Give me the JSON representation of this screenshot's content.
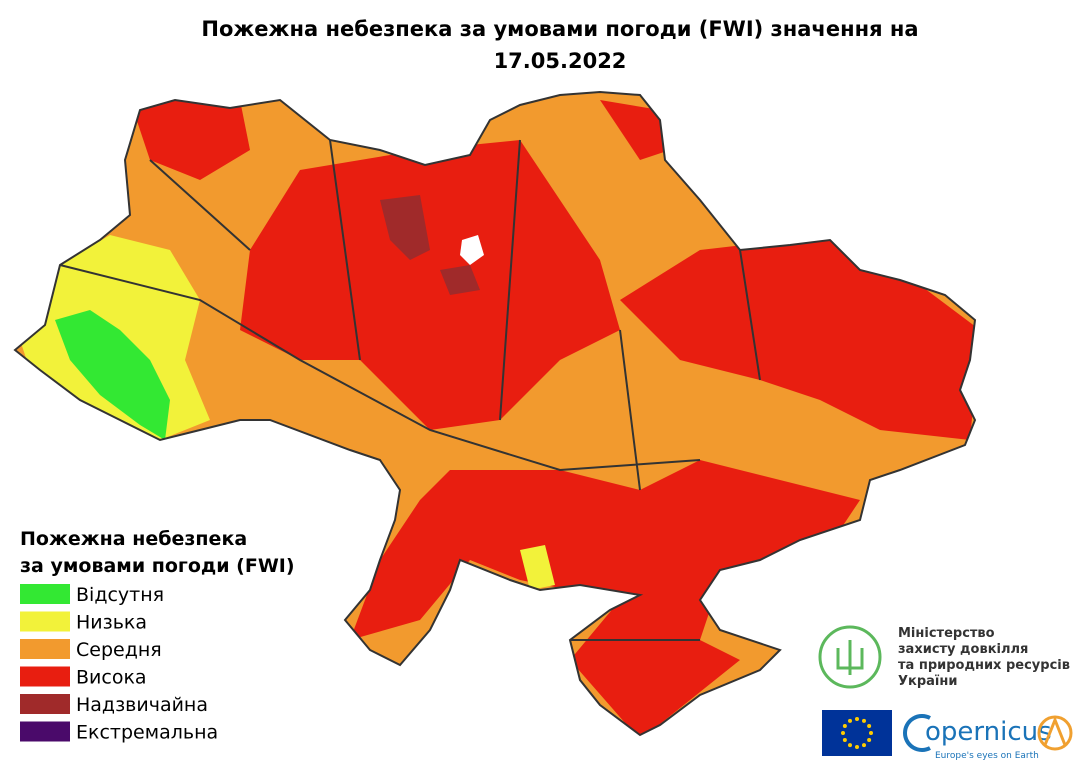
{
  "title": [
    "Пожежна небезпека за умовами погоди  (FWI) значення на",
    "17.05.2022"
  ],
  "legend": {
    "title": [
      "Пожежна небезпека",
      "за умовами погоди (FWI)"
    ],
    "items": [
      {
        "label": "Відсутня",
        "color": "#33e833"
      },
      {
        "label": "Низька",
        "color": "#f2f23a"
      },
      {
        "label": "Середня",
        "color": "#f29a2e"
      },
      {
        "label": "Висока",
        "color": "#e81e10"
      },
      {
        "label": "Надзвичайна",
        "color": "#a02a2a"
      },
      {
        "label": "Екстремальна",
        "color": "#4a0a6a"
      }
    ]
  },
  "ministry": [
    "Міністерство",
    "захисту довкілля",
    "та природних ресурсів",
    "України"
  ],
  "copernicus": {
    "name": "opernicus",
    "tagline": "Europe's eyes on Earth"
  }
}
